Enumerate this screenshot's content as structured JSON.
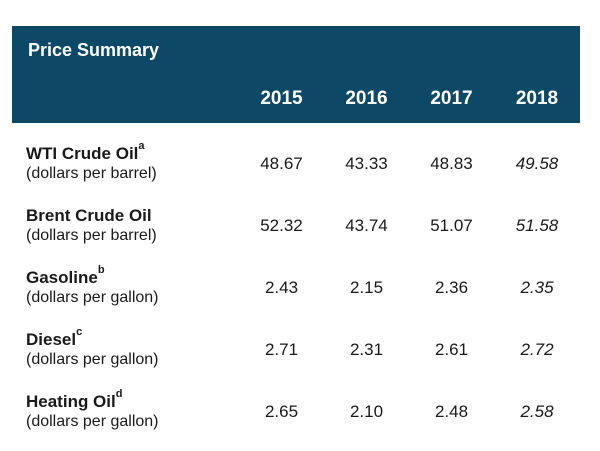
{
  "table": {
    "title": "Price Summary",
    "years": [
      "2015",
      "2016",
      "2017",
      "2018"
    ],
    "rows": [
      {
        "name": "WTI Crude Oil",
        "footnote": "a",
        "unit": "(dollars per barrel)",
        "values": [
          "48.67",
          "43.33",
          "48.83",
          "49.58"
        ]
      },
      {
        "name": "Brent Crude Oil",
        "footnote": "",
        "unit": "(dollars per barrel)",
        "values": [
          "52.32",
          "43.74",
          "51.07",
          "51.58"
        ]
      },
      {
        "name": "Gasoline",
        "footnote": "b",
        "unit": "(dollars per gallon)",
        "values": [
          "2.43",
          "2.15",
          "2.36",
          "2.35"
        ]
      },
      {
        "name": "Diesel",
        "footnote": "c",
        "unit": "(dollars per gallon)",
        "values": [
          "2.71",
          "2.31",
          "2.61",
          "2.72"
        ]
      },
      {
        "name": "Heating Oil",
        "footnote": "d",
        "unit": "(dollars per gallon)",
        "values": [
          "2.65",
          "2.10",
          "2.48",
          "2.58"
        ]
      }
    ]
  }
}
